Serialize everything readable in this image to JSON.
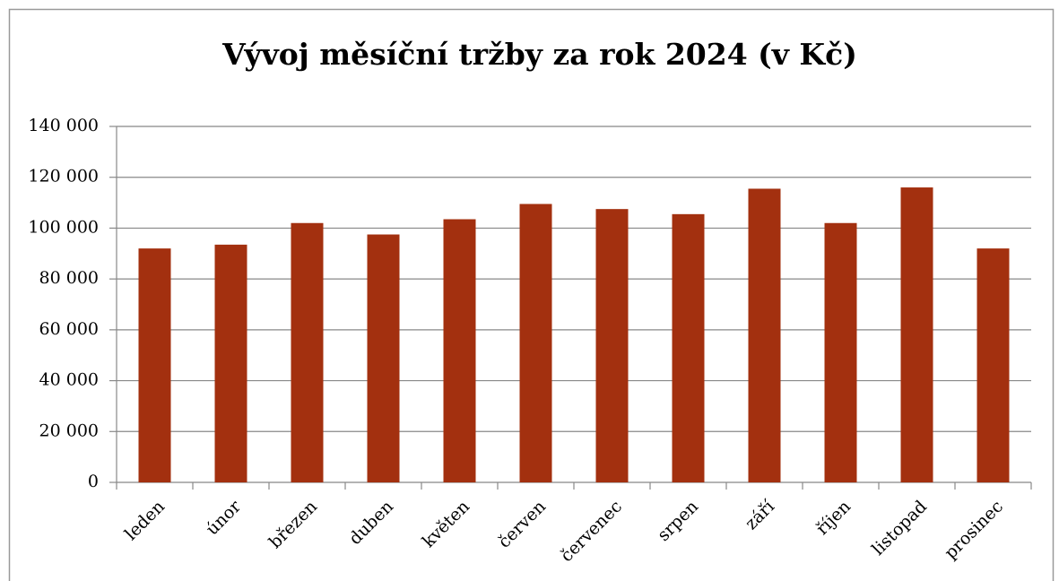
{
  "chart_data": {
    "type": "bar",
    "title": "Vývoj měsíční tržby za rok 2024 (v Kč)",
    "categories": [
      "leden",
      "únor",
      "březen",
      "duben",
      "květen",
      "červen",
      "červenec",
      "srpen",
      "září",
      "říjen",
      "listopad",
      "prosinec"
    ],
    "values": [
      92000,
      93500,
      102000,
      97500,
      103500,
      109500,
      107500,
      105500,
      115500,
      102000,
      116000,
      92000
    ],
    "color": "#a3300f",
    "ylim": [
      0,
      140000
    ],
    "yticks": [
      0,
      {
        "value": 20000,
        "label": "20 000"
      },
      {
        "value": 40000,
        "label": "40 000"
      },
      {
        "value": 60000,
        "label": "60 000"
      },
      {
        "value": 80000,
        "label": "80 000"
      },
      {
        "value": 100000,
        "label": "100 000"
      },
      {
        "value": 120000,
        "label": "120 000"
      },
      {
        "value": 140000,
        "label": "140 000"
      }
    ],
    "grid": true
  }
}
